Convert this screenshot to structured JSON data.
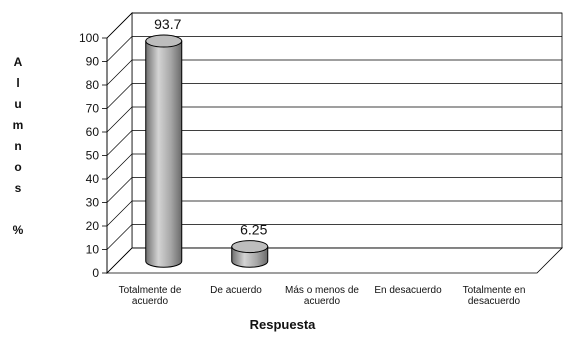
{
  "chart_data": {
    "type": "bar",
    "title": "",
    "categories": [
      [
        "Totalmente de",
        "acuerdo"
      ],
      [
        "De acuerdo"
      ],
      [
        "Más o menos de",
        "acuerdo"
      ],
      [
        "En desacuerdo"
      ],
      [
        "Totalmente en",
        "desacuerdo"
      ]
    ],
    "values": [
      93.7,
      6.25,
      0,
      0,
      0
    ],
    "value_labels": [
      "93.7",
      "6.25",
      "",
      "",
      ""
    ],
    "xlabel": "Respuesta",
    "ylabel": "Alumnos %",
    "ylabel_letters": [
      "A",
      "l",
      "u",
      "m",
      "n",
      "o",
      "s",
      "",
      "%"
    ],
    "ylim": [
      0,
      100
    ],
    "yticks": [
      "0",
      "10",
      "20",
      "30",
      "40",
      "50",
      "60",
      "70",
      "80",
      "90",
      "100"
    ],
    "grid": true,
    "legend": "none",
    "style": "3d-cylinder",
    "bar_color": "#a6a6a6"
  }
}
